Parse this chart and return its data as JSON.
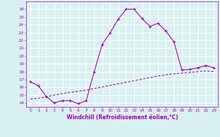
{
  "xlabel": "Windchill (Refroidissement éolien,°C)",
  "x_values": [
    0,
    1,
    2,
    3,
    4,
    5,
    6,
    7,
    8,
    9,
    10,
    11,
    12,
    13,
    14,
    15,
    16,
    17,
    18,
    19,
    20,
    21,
    22,
    23
  ],
  "curve1_y": [
    16.7,
    16.2,
    14.8,
    14.0,
    14.3,
    14.3,
    13.9,
    14.3,
    18.0,
    21.5,
    23.0,
    24.7,
    26.0,
    26.0,
    24.8,
    23.8,
    24.2,
    23.2,
    21.8,
    18.2,
    18.3,
    18.5,
    18.8,
    18.5
  ],
  "curve2_y": [
    14.5,
    14.6,
    14.8,
    15.0,
    15.2,
    15.35,
    15.5,
    15.65,
    15.85,
    16.05,
    16.25,
    16.45,
    16.65,
    16.85,
    17.05,
    17.25,
    17.45,
    17.6,
    17.72,
    17.82,
    17.92,
    18.0,
    18.1,
    18.0
  ],
  "line_color": "#AA00AA",
  "bg_color": "#d8f0f0",
  "grid_color": "#ffffff",
  "ylim": [
    13.5,
    27
  ],
  "xlim": [
    -0.5,
    23.5
  ],
  "yticks": [
    14,
    15,
    16,
    17,
    18,
    19,
    20,
    21,
    22,
    23,
    24,
    25,
    26
  ],
  "xticks": [
    0,
    1,
    2,
    3,
    4,
    5,
    6,
    7,
    8,
    9,
    10,
    11,
    12,
    13,
    14,
    15,
    16,
    17,
    18,
    19,
    20,
    21,
    22,
    23
  ]
}
